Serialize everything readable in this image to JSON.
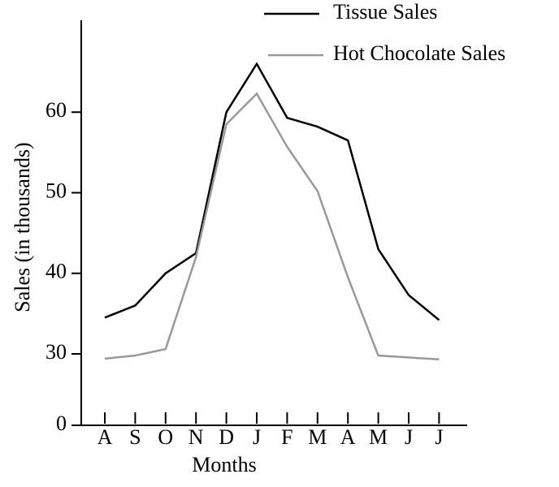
{
  "chart_data": {
    "type": "line",
    "xlabel": "Months",
    "ylabel": "Sales (in thousands)",
    "categories": [
      "A",
      "S",
      "O",
      "N",
      "D",
      "J",
      "F",
      "M",
      "A",
      "M",
      "J",
      "J"
    ],
    "series": [
      {
        "name": "Tissue Sales",
        "color": "#000000",
        "values": [
          34.5,
          36,
          40,
          42.5,
          60,
          66,
          59.3,
          58.2,
          56.5,
          43,
          37.3,
          34.2
        ]
      },
      {
        "name": "Hot Chocolate Sales",
        "color": "#999999",
        "values": [
          28,
          29.3,
          30.6,
          42,
          58.5,
          62.3,
          55.7,
          50.2,
          39.5,
          29.3,
          28.5,
          27.7
        ]
      }
    ],
    "ylim": [
      0,
      71
    ],
    "yticks": [
      0,
      30,
      40,
      50,
      60
    ],
    "axis_break": [
      0,
      30
    ],
    "legend": "top right"
  }
}
